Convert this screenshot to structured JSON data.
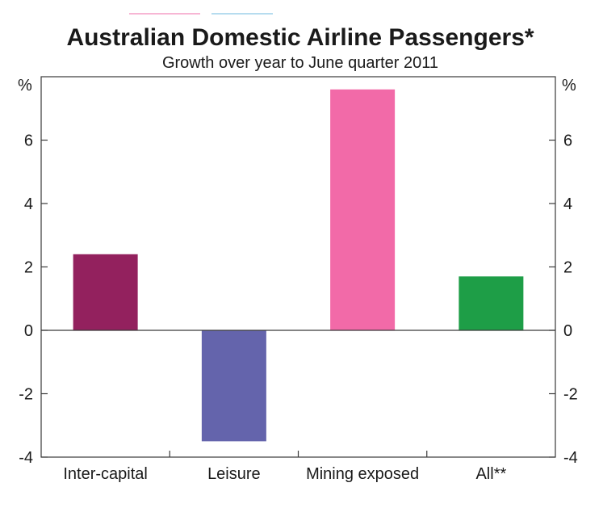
{
  "chart_data": {
    "type": "bar",
    "title": "Australian Domestic Airline Passengers*",
    "subtitle": "Growth over year to June quarter 2011",
    "unit_left": "%",
    "unit_right": "%",
    "categories": [
      "Inter-capital",
      "Leisure",
      "Mining exposed",
      "All**"
    ],
    "values": [
      2.4,
      -3.5,
      7.6,
      1.7
    ],
    "colors": [
      "#93215e",
      "#6464ac",
      "#f26aa8",
      "#1e9e47"
    ],
    "ylim": [
      -4,
      8
    ],
    "yticks": [
      -4,
      -2,
      0,
      2,
      4,
      6
    ],
    "grid": false,
    "legend": "none"
  }
}
